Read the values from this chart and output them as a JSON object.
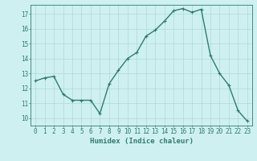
{
  "x": [
    0,
    1,
    2,
    3,
    4,
    5,
    6,
    7,
    8,
    9,
    10,
    11,
    12,
    13,
    14,
    15,
    16,
    17,
    18,
    19,
    20,
    21,
    22,
    23
  ],
  "y": [
    12.5,
    12.7,
    12.8,
    11.6,
    11.2,
    11.2,
    11.2,
    10.3,
    12.3,
    13.2,
    14.0,
    14.4,
    15.5,
    15.9,
    16.5,
    17.2,
    17.35,
    17.1,
    17.3,
    14.2,
    13.0,
    12.2,
    10.5,
    9.8
  ],
  "line_color": "#2e7d6e",
  "marker": "+",
  "marker_size": 3,
  "line_width": 1.0,
  "bg_color": "#cff0f0",
  "grid_color": "#aed8d8",
  "xlabel": "Humidex (Indice chaleur)",
  "xlim": [
    -0.5,
    23.5
  ],
  "ylim": [
    9.5,
    17.6
  ],
  "yticks": [
    10,
    11,
    12,
    13,
    14,
    15,
    16,
    17
  ],
  "tick_color": "#2e7d6e",
  "label_fontsize": 6.5,
  "tick_fontsize": 5.5
}
